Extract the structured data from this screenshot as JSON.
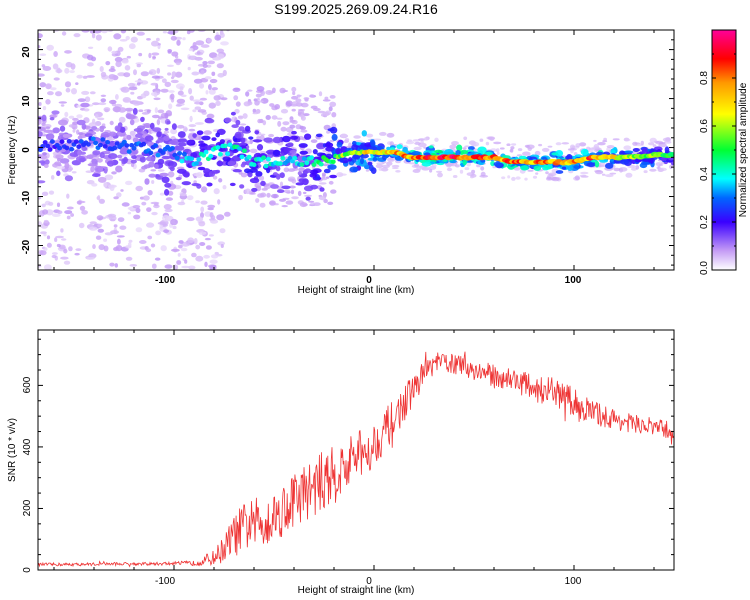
{
  "title": "S199.2025.269.09.24.R16",
  "chart_data": [
    {
      "type": "heatmap",
      "title": "S199.2025.269.09.24.R16",
      "xlabel": "Height of straight line (km)",
      "ylabel": "Frequency (Hz)",
      "xlim": [
        -168,
        150
      ],
      "ylim": [
        -25,
        24
      ],
      "xticks": [
        -100,
        0,
        100
      ],
      "yticks": [
        -20,
        -10,
        0,
        10,
        20
      ],
      "colorbar": {
        "label": "Normalized spectral amplitude",
        "range": [
          0,
          1
        ],
        "ticks": [
          "0.0",
          "0.2",
          "0.4",
          "0.6",
          "0.8"
        ]
      },
      "ridge": {
        "x": [
          -168,
          -140,
          -120,
          -100,
          -90,
          -80,
          -70,
          -60,
          -50,
          -40,
          -30,
          -20,
          -10,
          0,
          10,
          20,
          30,
          40,
          50,
          60,
          70,
          80,
          90,
          100,
          110,
          120,
          130,
          140,
          150
        ],
        "freq": [
          0,
          1,
          0,
          -1,
          -3,
          -1,
          0,
          -3,
          -3,
          -3,
          -3,
          -2,
          -1,
          -1,
          -1,
          -2,
          -2,
          -2,
          -2,
          -2,
          -3,
          -3,
          -3,
          -3,
          -2,
          -2,
          -2,
          -1.5,
          -1.5
        ],
        "amplitude": [
          0.25,
          0.3,
          0.3,
          0.35,
          0.4,
          0.45,
          0.45,
          0.45,
          0.45,
          0.4,
          0.45,
          0.6,
          0.7,
          0.75,
          0.8,
          0.85,
          0.95,
          0.95,
          0.9,
          0.85,
          0.9,
          0.85,
          0.85,
          0.8,
          0.9,
          0.75,
          0.65,
          0.6,
          0.55
        ]
      }
    },
    {
      "type": "line",
      "xlabel": "Height of straight line (km)",
      "ylabel": "SNR (10 * v/v)",
      "xlim": [
        -168,
        150
      ],
      "ylim": [
        0,
        780
      ],
      "xticks": [
        -100,
        0,
        100
      ],
      "yticks": [
        0,
        200,
        400,
        600
      ],
      "series": [
        {
          "name": "SNR",
          "color": "#ee3333",
          "x": [
            -168,
            -150,
            -130,
            -110,
            -90,
            -80,
            -75,
            -70,
            -65,
            -60,
            -55,
            -50,
            -45,
            -40,
            -35,
            -30,
            -25,
            -20,
            -15,
            -10,
            -5,
            0,
            5,
            10,
            15,
            20,
            25,
            30,
            35,
            40,
            50,
            60,
            70,
            80,
            90,
            100,
            110,
            120,
            130,
            140,
            150
          ],
          "values": [
            18,
            18,
            20,
            20,
            22,
            40,
            70,
            110,
            140,
            150,
            160,
            175,
            200,
            230,
            250,
            270,
            290,
            310,
            330,
            360,
            380,
            410,
            450,
            490,
            540,
            590,
            640,
            670,
            675,
            670,
            650,
            630,
            620,
            590,
            580,
            540,
            510,
            490,
            475,
            465,
            450
          ],
          "noise": [
            5,
            5,
            5,
            5,
            8,
            25,
            45,
            70,
            80,
            85,
            85,
            85,
            90,
            95,
            95,
            95,
            100,
            95,
            95,
            90,
            85,
            75,
            70,
            65,
            60,
            50,
            40,
            35,
            35,
            35,
            35,
            40,
            40,
            45,
            45,
            55,
            40,
            35,
            30,
            30,
            30
          ]
        }
      ]
    }
  ]
}
